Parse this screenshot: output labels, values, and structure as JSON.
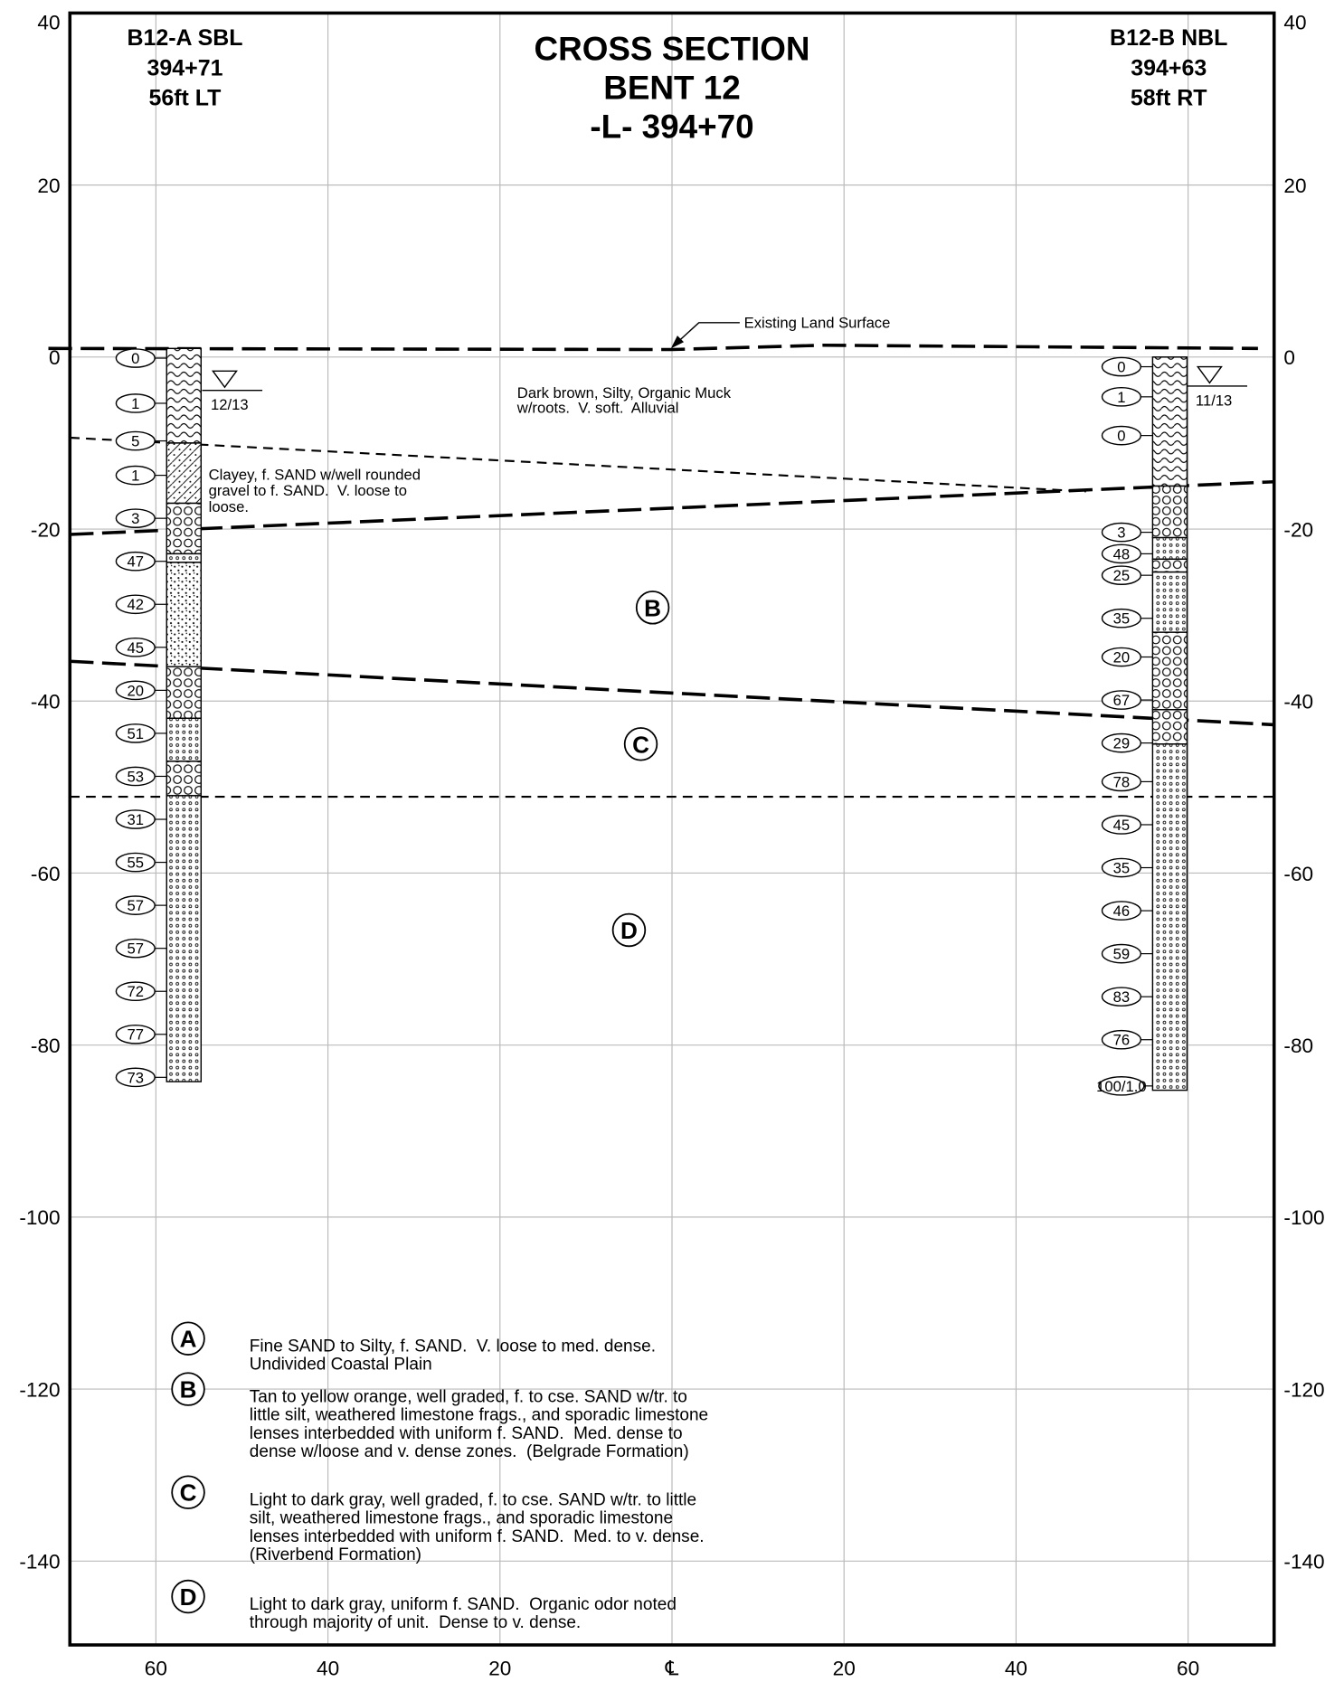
{
  "title": [
    "CROSS SECTION",
    "BENT 12",
    "-L- 394+70"
  ],
  "y_ticks": [
    "40",
    "20",
    "0",
    "-20",
    "-40",
    "-60",
    "-80",
    "-100",
    "-120",
    "-140"
  ],
  "x_ticks": [
    "60",
    "40",
    "20",
    "℄",
    "20",
    "40",
    "60"
  ],
  "borings": [
    {
      "header": [
        "B12-A SBL",
        "394+71",
        "56ft LT"
      ],
      "water_level": "12/13",
      "spt": [
        "0",
        "1",
        "5",
        "1",
        "3",
        "47",
        "42",
        "45",
        "20",
        "51",
        "53",
        "31",
        "55",
        "57",
        "57",
        "72",
        "77",
        "73"
      ]
    },
    {
      "header": [
        "B12-B NBL",
        "394+63",
        "58ft RT"
      ],
      "water_level": "11/13",
      "spt": [
        "0",
        "1",
        "0",
        "3",
        "48",
        "25",
        "35",
        "20",
        "67",
        "29",
        "78",
        "45",
        "35",
        "46",
        "59",
        "83",
        "76",
        "100/1.0"
      ]
    }
  ],
  "annotations": {
    "land_surface": "Existing Land Surface",
    "muck": [
      "Dark brown, Silty, Organic Muck",
      "w/roots.  V. soft.  Alluvial"
    ],
    "clayey": [
      "Clayey, f. SAND w/well rounded",
      "gravel to f. SAND.  V. loose to",
      "loose."
    ],
    "units": [
      "B",
      "C",
      "D"
    ]
  },
  "legend": [
    {
      "letter": "A",
      "lines": [
        "Fine SAND to Silty, f. SAND.  V. loose to med. dense.",
        "Undivided Coastal Plain"
      ]
    },
    {
      "letter": "B",
      "lines": [
        "Tan to yellow orange, well graded, f. to cse. SAND w/tr. to",
        "little silt, weathered limestone frags., and sporadic limestone",
        "lenses interbedded with uniform f. SAND.  Med. dense to",
        "dense w/loose and v. dense zones.  (Belgrade Formation)"
      ]
    },
    {
      "letter": "C",
      "lines": [
        "Light to dark gray, well graded, f. to cse. SAND w/tr. to little",
        "silt, weathered limestone frags., and sporadic limestone",
        "lenses interbedded with uniform f. SAND.  Med. to v. dense.",
        "(Riverbend Formation)"
      ]
    },
    {
      "letter": "D",
      "lines": [
        "Light to dark gray, uniform f. SAND.  Organic odor noted",
        "through majority of unit.  Dense to v. dense."
      ]
    }
  ]
}
